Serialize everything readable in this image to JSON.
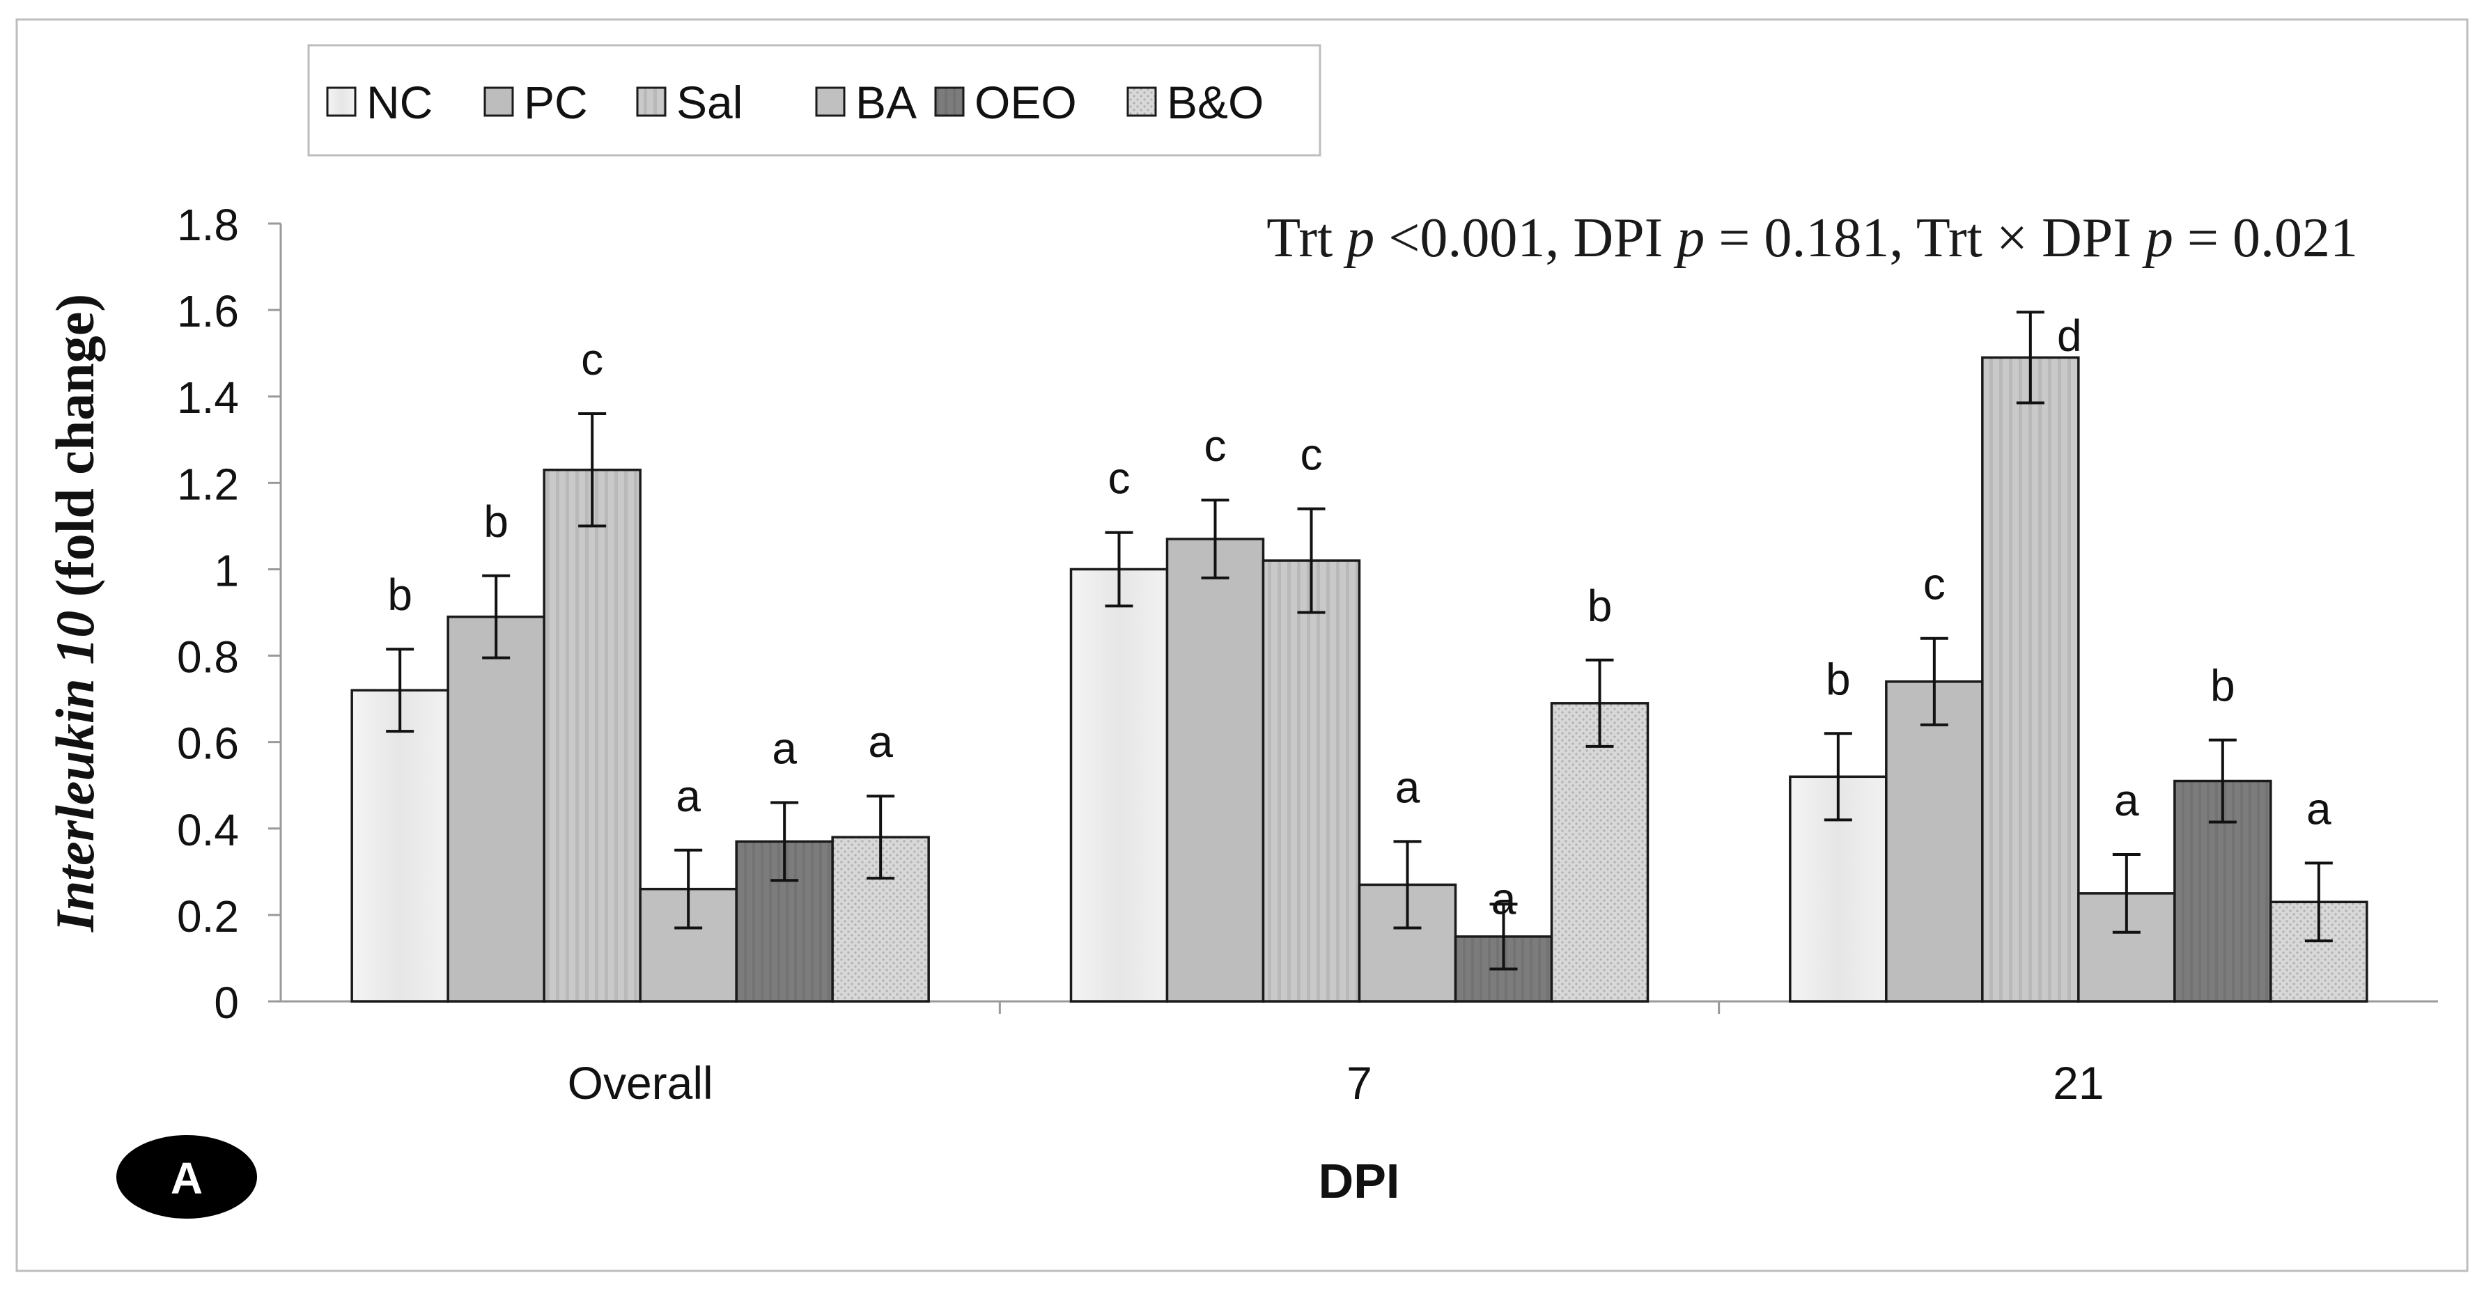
{
  "chart_data": {
    "type": "bar",
    "title": "",
    "xlabel": "DPI",
    "ylabel_italic": "Interleukin 10",
    "ylabel_rest": " (fold change)",
    "ylim": [
      0,
      1.8
    ],
    "yticks": [
      0,
      0.2,
      0.4,
      0.6,
      0.8,
      1,
      1.2,
      1.4,
      1.6,
      1.8
    ],
    "ytick_labels": [
      "0",
      "0.2",
      "0.4",
      "0.6",
      "0.8",
      "1",
      "1.2",
      "1.4",
      "1.6",
      "1.8"
    ],
    "grid": false,
    "legend_position": "top-left",
    "categories": [
      "Overall",
      "7",
      "21"
    ],
    "series": [
      {
        "name": "NC",
        "color": "#ebebeb",
        "pattern": "light",
        "values": [
          0.72,
          1.0,
          0.52
        ],
        "errors": [
          0.095,
          0.085,
          0.1
        ],
        "letters": [
          "b",
          "c",
          "b"
        ]
      },
      {
        "name": "PC",
        "color": "#bdbdbd",
        "pattern": "solid",
        "values": [
          0.89,
          1.07,
          0.74
        ],
        "errors": [
          0.095,
          0.09,
          0.1
        ],
        "letters": [
          "b",
          "c",
          "c"
        ]
      },
      {
        "name": "Sal",
        "color": "#c7c7c7",
        "pattern": "stripe",
        "values": [
          1.23,
          1.02,
          1.49
        ],
        "errors": [
          0.13,
          0.12,
          0.105
        ],
        "letters": [
          "c",
          "c",
          "d"
        ]
      },
      {
        "name": "BA",
        "color": "#c0c0c0",
        "pattern": "solid",
        "values": [
          0.26,
          0.27,
          0.25
        ],
        "errors": [
          0.09,
          0.1,
          0.09
        ],
        "letters": [
          "a",
          "a",
          "a"
        ]
      },
      {
        "name": "OEO",
        "color": "#7f7f7f",
        "pattern": "dark",
        "values": [
          0.37,
          0.15,
          0.51
        ],
        "errors": [
          0.09,
          0.075,
          0.095
        ],
        "letters": [
          "a",
          "a",
          "b"
        ]
      },
      {
        "name": "B&O",
        "color": "#d4d4d4",
        "pattern": "dots",
        "values": [
          0.38,
          0.69,
          0.23
        ],
        "errors": [
          0.095,
          0.1,
          0.09
        ],
        "letters": [
          "a",
          "b",
          "a"
        ]
      }
    ],
    "annotation": {
      "parts": [
        {
          "text": "Trt ",
          "italic": false
        },
        {
          "text": "p",
          "italic": true
        },
        {
          "text": " <0.001, DPI ",
          "italic": false
        },
        {
          "text": "p",
          "italic": true
        },
        {
          "text": " = 0.181,  Trt × DPI ",
          "italic": false
        },
        {
          "text": "p",
          "italic": true
        },
        {
          "text": " = 0.021",
          "italic": false
        }
      ]
    },
    "panel_label": "A"
  }
}
